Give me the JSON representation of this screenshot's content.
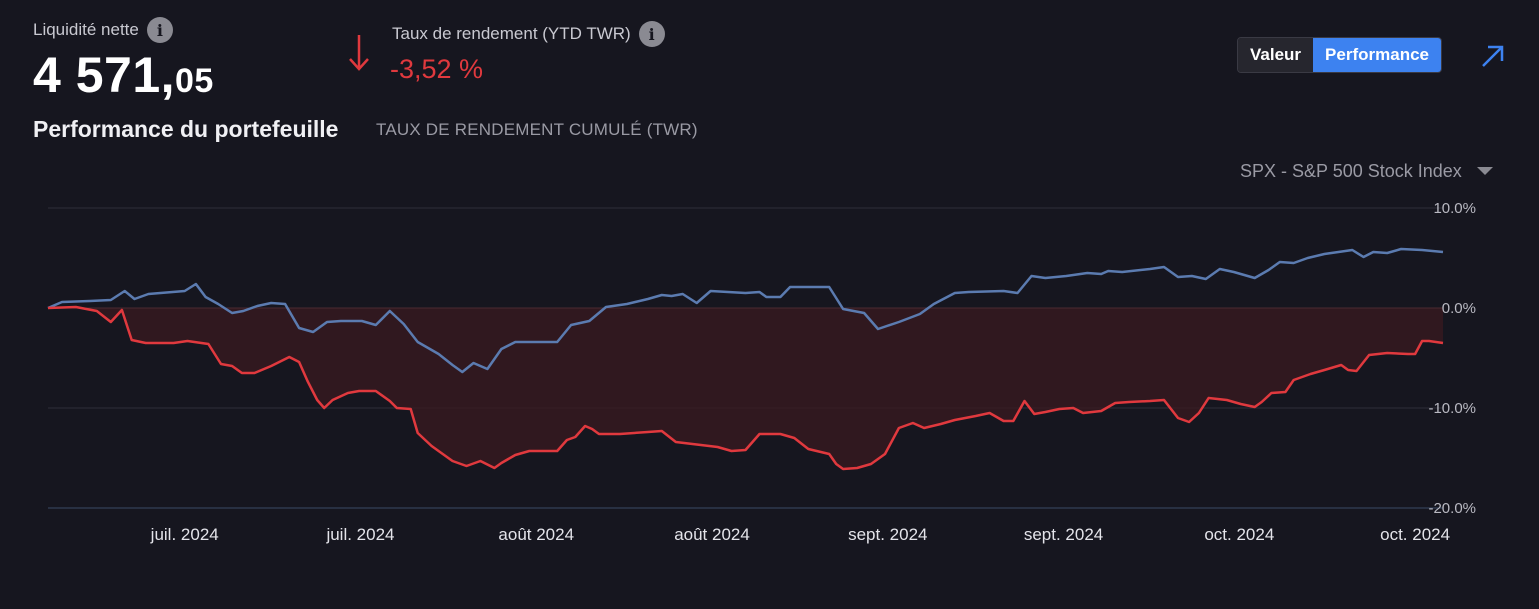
{
  "header": {
    "net_liquidity_label": "Liquidité nette",
    "net_liquidity_int": "4 571,",
    "net_liquidity_dec": "05",
    "return_label": "Taux de rendement (YTD TWR)",
    "return_value": "-3,52 %",
    "info_icon_glyph": "i"
  },
  "toggle": {
    "valeur_label": "Valeur",
    "performance_label": "Performance",
    "active": "performance"
  },
  "icons": {
    "info": "info-icon",
    "down_arrow": "arrow-down-icon",
    "expand": "expand-arrow-icon",
    "dropdown": "caret-down-icon"
  },
  "section": {
    "title": "Performance du portefeuille",
    "subtitle": "TAUX DE RENDEMENT CUMULÉ (TWR)"
  },
  "benchmark": {
    "selected": "SPX - S&P 500 Stock Index"
  },
  "colors": {
    "background": "#16161f",
    "portfolio": "#e0393e",
    "benchmark": "#5b7bb0",
    "accent": "#3d82f0",
    "negative_text": "#e0393e"
  },
  "chart_data": {
    "type": "line",
    "title": "",
    "xlabel": "",
    "ylabel": "",
    "ylim": [
      -20,
      10
    ],
    "y_ticks": [
      {
        "value": 10,
        "label": "10.0%"
      },
      {
        "value": 0,
        "label": "0.0%"
      },
      {
        "value": -10,
        "label": "-10.0%"
      },
      {
        "value": -20,
        "label": "-20.0%"
      }
    ],
    "x_tick_labels": [
      "juil. 2024",
      "juil. 2024",
      "août 2024",
      "août 2024",
      "sept. 2024",
      "sept. 2024",
      "oct. 2024",
      "oct. 2024"
    ],
    "x_range": [
      0,
      100
    ],
    "x_tick_positions": [
      9.8,
      22.4,
      35.0,
      47.6,
      60.2,
      72.8,
      85.4,
      98.0
    ],
    "grid": true,
    "area_fill_below_zero": true,
    "series": [
      {
        "name": "Portefeuille",
        "role": "portfolio",
        "points": [
          [
            0,
            0
          ],
          [
            2,
            0.1
          ],
          [
            3.5,
            -0.3
          ],
          [
            4.5,
            -1.4
          ],
          [
            5.3,
            -0.2
          ],
          [
            6,
            -3.2
          ],
          [
            7,
            -3.5
          ],
          [
            9,
            -3.5
          ],
          [
            10,
            -3.3
          ],
          [
            11.5,
            -3.6
          ],
          [
            12.4,
            -5.6
          ],
          [
            13.2,
            -5.8
          ],
          [
            13.9,
            -6.5
          ],
          [
            14.8,
            -6.5
          ],
          [
            16,
            -5.8
          ],
          [
            17.3,
            -4.9
          ],
          [
            18,
            -5.4
          ],
          [
            18.6,
            -7.3
          ],
          [
            19.3,
            -9.2
          ],
          [
            19.8,
            -10.0
          ],
          [
            20.4,
            -9.2
          ],
          [
            21.5,
            -8.5
          ],
          [
            22.3,
            -8.3
          ],
          [
            23.5,
            -8.3
          ],
          [
            24.5,
            -9.3
          ],
          [
            25,
            -10.0
          ],
          [
            26,
            -10.1
          ],
          [
            26.5,
            -12.5
          ],
          [
            27.5,
            -13.8
          ],
          [
            29,
            -15.3
          ],
          [
            30,
            -15.8
          ],
          [
            31,
            -15.3
          ],
          [
            32,
            -16.0
          ],
          [
            32.5,
            -15.5
          ],
          [
            33.5,
            -14.7
          ],
          [
            34.5,
            -14.3
          ],
          [
            36.5,
            -14.3
          ],
          [
            37.2,
            -13.2
          ],
          [
            37.8,
            -12.9
          ],
          [
            38.5,
            -11.8
          ],
          [
            39,
            -12.1
          ],
          [
            39.5,
            -12.6
          ],
          [
            41,
            -12.6
          ],
          [
            43,
            -12.4
          ],
          [
            44,
            -12.3
          ],
          [
            45,
            -13.4
          ],
          [
            48,
            -13.9
          ],
          [
            49,
            -14.3
          ],
          [
            50,
            -14.2
          ],
          [
            51,
            -12.6
          ],
          [
            52.5,
            -12.6
          ],
          [
            53.5,
            -13.0
          ],
          [
            54.5,
            -14.1
          ],
          [
            56,
            -14.6
          ],
          [
            56.5,
            -15.6
          ],
          [
            57,
            -16.1
          ],
          [
            58,
            -16.0
          ],
          [
            59,
            -15.6
          ],
          [
            60,
            -14.6
          ],
          [
            61,
            -12.0
          ],
          [
            62,
            -11.5
          ],
          [
            62.8,
            -12.0
          ],
          [
            64,
            -11.6
          ],
          [
            65,
            -11.2
          ],
          [
            66.5,
            -10.8
          ],
          [
            67.5,
            -10.5
          ],
          [
            68.5,
            -11.3
          ],
          [
            69.2,
            -11.3
          ],
          [
            70,
            -9.3
          ],
          [
            70.7,
            -10.6
          ],
          [
            71.5,
            -10.4
          ],
          [
            72.5,
            -10.1
          ],
          [
            73.5,
            -10.0
          ],
          [
            74.2,
            -10.5
          ],
          [
            75.5,
            -10.3
          ],
          [
            76.5,
            -9.5
          ],
          [
            77.5,
            -9.4
          ],
          [
            79,
            -9.3
          ],
          [
            80,
            -9.2
          ],
          [
            81,
            -11.0
          ],
          [
            81.8,
            -11.4
          ],
          [
            82.5,
            -10.5
          ],
          [
            83.2,
            -9.0
          ],
          [
            84.5,
            -9.2
          ],
          [
            85.5,
            -9.6
          ],
          [
            86.5,
            -9.9
          ],
          [
            87,
            -9.4
          ],
          [
            87.7,
            -8.5
          ],
          [
            88.7,
            -8.4
          ],
          [
            89.3,
            -7.2
          ],
          [
            90.5,
            -6.6
          ],
          [
            91.5,
            -6.2
          ],
          [
            92.7,
            -5.7
          ],
          [
            93.2,
            -6.2
          ],
          [
            93.8,
            -6.3
          ],
          [
            94.7,
            -4.7
          ],
          [
            96,
            -4.5
          ],
          [
            97.5,
            -4.6
          ],
          [
            98,
            -4.6
          ],
          [
            98.5,
            -3.3
          ],
          [
            99,
            -3.3
          ],
          [
            100,
            -3.5
          ]
        ]
      },
      {
        "name": "SPX - S&P 500 Stock Index",
        "role": "benchmark",
        "points": [
          [
            0,
            0
          ],
          [
            1,
            0.6
          ],
          [
            3,
            0.7
          ],
          [
            4.5,
            0.8
          ],
          [
            5.5,
            1.7
          ],
          [
            6.2,
            0.9
          ],
          [
            7.2,
            1.4
          ],
          [
            9.8,
            1.7
          ],
          [
            10.6,
            2.4
          ],
          [
            11.3,
            1.1
          ],
          [
            12.2,
            0.4
          ],
          [
            13.2,
            -0.5
          ],
          [
            14,
            -0.3
          ],
          [
            15,
            0.2
          ],
          [
            16,
            0.5
          ],
          [
            17,
            0.4
          ],
          [
            18,
            -2.0
          ],
          [
            19,
            -2.4
          ],
          [
            20,
            -1.4
          ],
          [
            21,
            -1.3
          ],
          [
            22.5,
            -1.3
          ],
          [
            23.5,
            -1.7
          ],
          [
            24.5,
            -0.3
          ],
          [
            25.5,
            -1.6
          ],
          [
            26.5,
            -3.4
          ],
          [
            28,
            -4.6
          ],
          [
            29,
            -5.7
          ],
          [
            29.7,
            -6.4
          ],
          [
            30.5,
            -5.5
          ],
          [
            31,
            -5.8
          ],
          [
            31.5,
            -6.1
          ],
          [
            32.5,
            -4.1
          ],
          [
            33.5,
            -3.4
          ],
          [
            35.5,
            -3.4
          ],
          [
            36.5,
            -3.4
          ],
          [
            37.5,
            -1.7
          ],
          [
            38.8,
            -1.3
          ],
          [
            40,
            0.1
          ],
          [
            41.5,
            0.4
          ],
          [
            43,
            0.9
          ],
          [
            44,
            1.3
          ],
          [
            44.7,
            1.2
          ],
          [
            45.5,
            1.4
          ],
          [
            46.5,
            0.5
          ],
          [
            47.5,
            1.7
          ],
          [
            50,
            1.5
          ],
          [
            51,
            1.6
          ],
          [
            51.5,
            1.1
          ],
          [
            52.5,
            1.1
          ],
          [
            53.2,
            2.1
          ],
          [
            56,
            2.1
          ],
          [
            57,
            -0.1
          ],
          [
            58.5,
            -0.5
          ],
          [
            59.5,
            -2.1
          ],
          [
            61,
            -1.4
          ],
          [
            62.5,
            -0.6
          ],
          [
            63.5,
            0.4
          ],
          [
            65,
            1.5
          ],
          [
            66,
            1.6
          ],
          [
            68.5,
            1.7
          ],
          [
            69.5,
            1.5
          ],
          [
            70.5,
            3.2
          ],
          [
            71.5,
            3.0
          ],
          [
            73,
            3.2
          ],
          [
            74.5,
            3.5
          ],
          [
            75.5,
            3.4
          ],
          [
            76,
            3.7
          ],
          [
            77,
            3.6
          ],
          [
            79,
            3.9
          ],
          [
            80,
            4.1
          ],
          [
            81,
            3.1
          ],
          [
            82,
            3.2
          ],
          [
            83,
            2.9
          ],
          [
            84,
            3.9
          ],
          [
            85,
            3.6
          ],
          [
            86.5,
            3.0
          ],
          [
            87.5,
            3.8
          ],
          [
            88.3,
            4.6
          ],
          [
            89.3,
            4.5
          ],
          [
            90.3,
            5.0
          ],
          [
            91.5,
            5.4
          ],
          [
            92.5,
            5.6
          ],
          [
            93.5,
            5.8
          ],
          [
            94.3,
            5.1
          ],
          [
            95,
            5.6
          ],
          [
            96,
            5.5
          ],
          [
            97,
            5.9
          ],
          [
            98.5,
            5.8
          ],
          [
            100,
            5.6
          ]
        ]
      }
    ]
  }
}
